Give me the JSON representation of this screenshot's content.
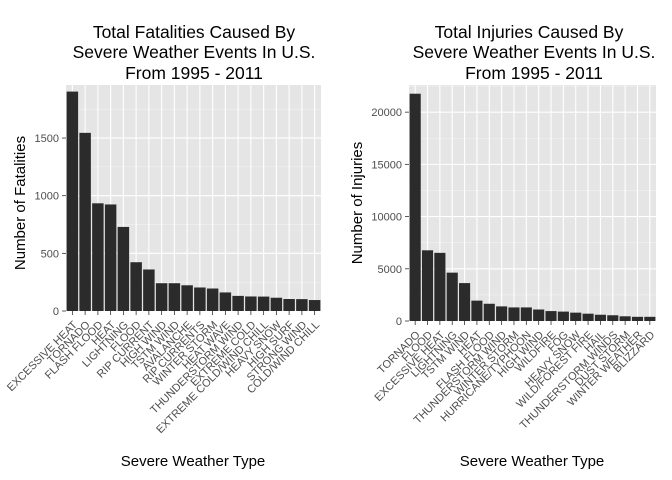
{
  "colors": {
    "panel_background": "#e5e5e5",
    "grid_major": "#ffffff",
    "grid_minor": "#f2f2f2",
    "bar_fill": "#2b2b2b",
    "tick_text": "#4d4d4d",
    "page_background": "#ffffff"
  },
  "chart_data": [
    {
      "type": "bar",
      "title": [
        "Total Fatalities Caused By",
        "Severe Weather Events In U.S.",
        "From 1995 - 2011"
      ],
      "xlabel": "Severe Weather Type",
      "ylabel": "Number of Fatalities",
      "ylim": [
        0,
        1960
      ],
      "yticks": [
        0,
        500,
        1000,
        1500
      ],
      "grid": true,
      "categories": [
        "EXCESSIVE HEAT",
        "TORNADO",
        "FLASH FLOOD",
        "HEAT",
        "LIGHTNING",
        "FLOOD",
        "RIP CURRENT",
        "HIGH WIND",
        "TSTM WIND",
        "AVALANCHE",
        "RIP CURRENTS",
        "WINTER STORM",
        "HEAT WAVE",
        "THUNDERSTORM WIND",
        "EXTREME COLD",
        "EXTREME COLD/WIND CHILL",
        "HEAVY SNOW",
        "HIGH SURF",
        "STRONG WIND",
        "COLD/WIND CHILL"
      ],
      "values": [
        1903,
        1545,
        934,
        924,
        729,
        423,
        360,
        241,
        241,
        223,
        204,
        195,
        161,
        131,
        126,
        125,
        115,
        104,
        103,
        95
      ]
    },
    {
      "type": "bar",
      "title": [
        "Total Injuries Caused By",
        "Severe Weather Events In U.S.",
        "From 1995 - 2011"
      ],
      "xlabel": "Severe Weather Type",
      "ylabel": "Number of Injuries",
      "ylim": [
        0,
        22600
      ],
      "yticks": [
        0,
        5000,
        10000,
        15000,
        20000
      ],
      "grid": true,
      "categories": [
        "TORNADO",
        "FLOOD",
        "EXCESSIVE HEAT",
        "LIGHTNING",
        "TSTM WIND",
        "HEAT",
        "FLASH FLOOD",
        "THUNDERSTORM WIND",
        "WINTER STORM",
        "HURRICANE/TYPHOON",
        "HIGH WIND",
        "WILDFIRE",
        "FOG",
        "HEAVY SNOW",
        "WILD/FOREST FIRE",
        "HAIL",
        "THUNDERSTORM WINDS",
        "DUST STORM",
        "WINTER WEATHER",
        "BLIZZARD"
      ],
      "values": [
        21765,
        6770,
        6525,
        4631,
        3630,
        1950,
        1650,
        1400,
        1300,
        1300,
        1100,
        950,
        900,
        800,
        700,
        600,
        550,
        450,
        400,
        400
      ]
    }
  ]
}
